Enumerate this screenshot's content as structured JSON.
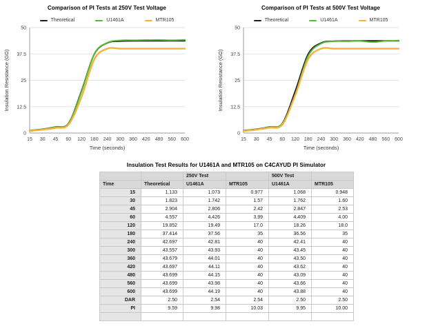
{
  "colors": {
    "theoretical_line": "#1b1b1b",
    "u1461a_line": "#55bb36",
    "mtr105_line": "#f5b13d",
    "gridline": "#e3e3e3",
    "axis": "#9b9b9b",
    "tick_text": "#444444",
    "table_header_bg": "#d9d9d9",
    "table_time_col_bg": "#e5e5e5",
    "table_border": "#c8c8c8"
  },
  "chart_data": [
    {
      "type": "line",
      "title": "Comparison of PI Tests at 250V Test Voltage",
      "categories": [
        "15",
        "30",
        "45",
        "60",
        "120",
        "180",
        "240",
        "300",
        "360",
        "420",
        "480",
        "560",
        "600"
      ],
      "series": [
        {
          "name": "Theoretical",
          "color": "#1b1b1b",
          "width": 2,
          "values": [
            1.133,
            1.823,
            2.904,
            4.557,
            19.852,
            37.414,
            42.697,
            43.557,
            43.679,
            43.697,
            43.699,
            43.699,
            43.699
          ]
        },
        {
          "name": "U1461A",
          "color": "#55bb36",
          "width": 2,
          "values": [
            1.073,
            1.742,
            2.806,
            4.426,
            19.49,
            37.56,
            42.81,
            43.93,
            44.01,
            44.11,
            44.15,
            43.98,
            44.19
          ]
        },
        {
          "name": "MTR105",
          "color": "#f5b13d",
          "width": 2.4,
          "values": [
            0.977,
            1.57,
            2.42,
            3.99,
            17.0,
            35,
            40,
            40,
            40,
            40,
            40,
            40,
            40
          ]
        }
      ],
      "xlabel": "Time (seconds)",
      "ylabel": "Insulation Resistance (GΩ)",
      "ylim": [
        0,
        50
      ],
      "yticks": [
        0,
        12.5,
        25,
        37.5,
        50
      ],
      "grid": true,
      "legend_position": "top"
    },
    {
      "type": "line",
      "title": "Comparison of PI Tests at 500V Test Voltage",
      "categories": [
        "15",
        "30",
        "45",
        "60",
        "120",
        "180",
        "240",
        "300",
        "360",
        "420",
        "480",
        "560",
        "600"
      ],
      "series": [
        {
          "name": "Theoretical",
          "color": "#1b1b1b",
          "width": 2,
          "values": [
            1.133,
            1.823,
            2.904,
            4.557,
            19.852,
            37.414,
            42.697,
            43.557,
            43.679,
            43.697,
            43.699,
            43.699,
            43.699
          ]
        },
        {
          "name": "U1461A",
          "color": "#55bb36",
          "width": 2,
          "values": [
            1.068,
            1.762,
            2.847,
            4.409,
            18.26,
            36.56,
            42.41,
            43.45,
            43.5,
            43.62,
            43.09,
            43.66,
            43.88
          ]
        },
        {
          "name": "MTR105",
          "color": "#f5b13d",
          "width": 2.4,
          "values": [
            0.948,
            1.6,
            2.53,
            4.0,
            18.0,
            35,
            40,
            40,
            40,
            40,
            40,
            40,
            40
          ]
        }
      ],
      "xlabel": "Time (seconds)",
      "ylabel": "Insulation Resistance (GΩ)",
      "ylim": [
        0,
        50
      ],
      "yticks": [
        0,
        12.5,
        25,
        37.5,
        50
      ],
      "grid": true,
      "legend_position": "top"
    }
  ],
  "table": {
    "title": "Insulation Test Results for U1461A and MTR105 on C4CAYUD PI Simulator",
    "group_header": [
      "",
      "",
      "250V Test",
      "",
      "500V Test",
      ""
    ],
    "columns": [
      "Time",
      "Theoretical",
      "U1461A",
      "MTR105",
      "U1461A",
      "MTR105"
    ],
    "rows": [
      [
        "15",
        "1.133",
        "1.073",
        "0.977",
        "1.068",
        "0.948"
      ],
      [
        "30",
        "1.823",
        "1.742",
        "1.57",
        "1.762",
        "1.60"
      ],
      [
        "45",
        "2.904",
        "2.806",
        "2.42",
        "2.847",
        "2.53"
      ],
      [
        "60",
        "4.557",
        "4.426",
        "3.99",
        "4.409",
        "4.00"
      ],
      [
        "120",
        "19.852",
        "19.49",
        "17.0",
        "18.26",
        "18.0"
      ],
      [
        "180",
        "37.414",
        "37.56",
        "35",
        "36.56",
        "35"
      ],
      [
        "240",
        "42.697",
        "42.81",
        "40",
        "42.41",
        "40"
      ],
      [
        "300",
        "43.557",
        "43.93",
        "40",
        "43.45",
        "40"
      ],
      [
        "360",
        "43.679",
        "44.01",
        "40",
        "43.50",
        "40"
      ],
      [
        "420",
        "43.697",
        "44.11",
        "40",
        "43.62",
        "40"
      ],
      [
        "480",
        "43.699",
        "44.15",
        "40",
        "43.09",
        "40"
      ],
      [
        "560",
        "43.699",
        "43.98",
        "40",
        "43.66",
        "40"
      ],
      [
        "600",
        "43.699",
        "44.19",
        "40",
        "43.88",
        "40"
      ],
      [
        "DAR",
        "2.50",
        "2.54",
        "2.54",
        "2.50",
        "2.50"
      ],
      [
        "PI",
        "9.59",
        "9.98",
        "10.03",
        "9.95",
        "10.00"
      ],
      [
        "",
        "",
        "",
        "",
        "",
        ""
      ]
    ]
  }
}
